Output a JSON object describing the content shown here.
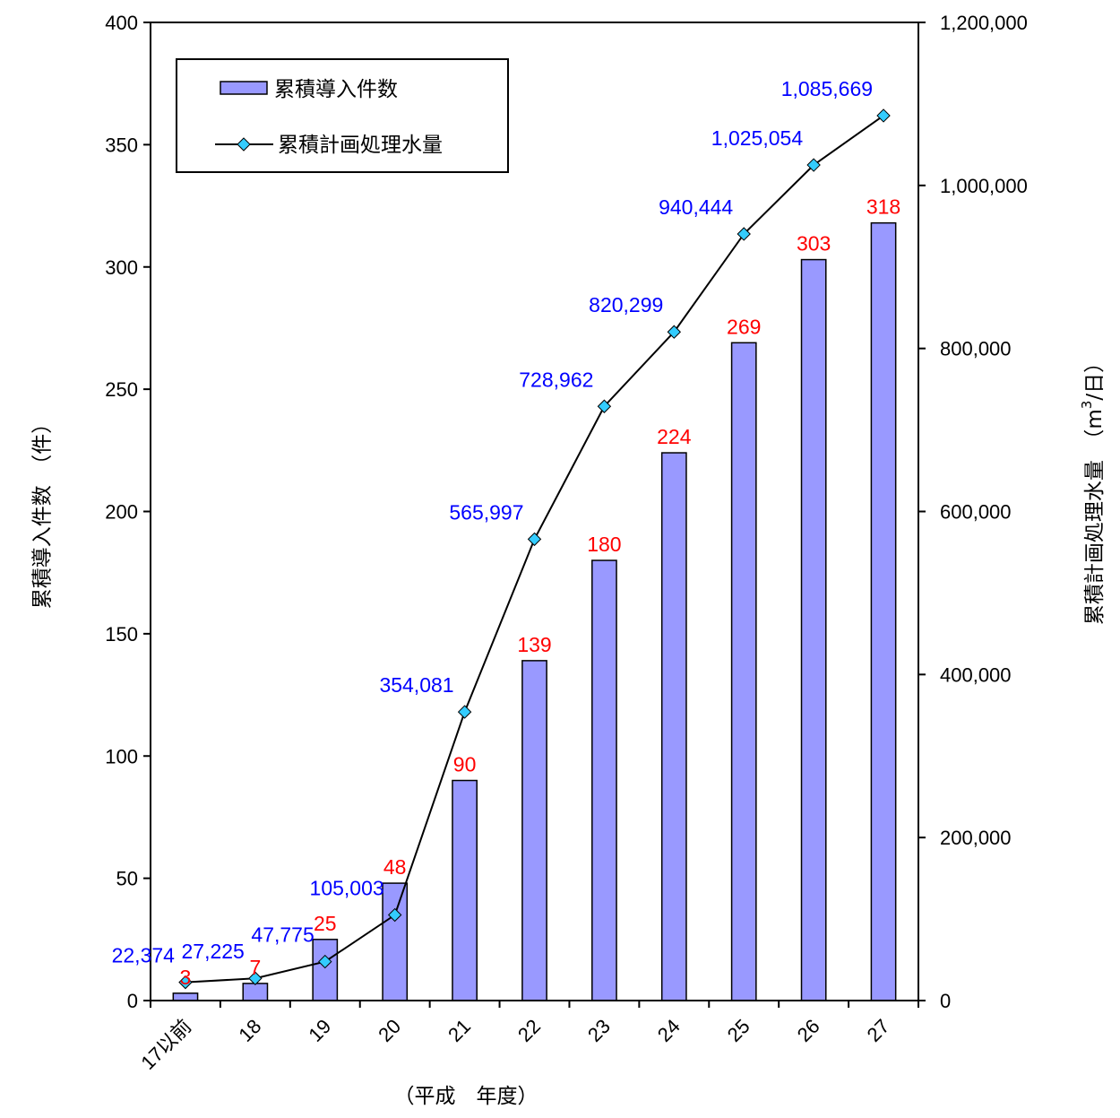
{
  "chart_data": {
    "type": "bar",
    "categories": [
      "17以前",
      "18",
      "19",
      "20",
      "21",
      "22",
      "23",
      "24",
      "25",
      "26",
      "27"
    ],
    "series": [
      {
        "name": "累積導入件数",
        "type": "bar",
        "axis": "left",
        "values": [
          3,
          7,
          25,
          48,
          90,
          139,
          180,
          224,
          269,
          303,
          318
        ],
        "labels": [
          "3",
          "7",
          "25",
          "48",
          "90",
          "139",
          "180",
          "224",
          "269",
          "303",
          "318"
        ],
        "color": "#9999ff",
        "label_color": "#ff0000"
      },
      {
        "name": "累積計画処理水量",
        "type": "line",
        "axis": "right",
        "values": [
          22374,
          27225,
          47775,
          105003,
          354081,
          565997,
          728962,
          820299,
          940444,
          1025054,
          1085669
        ],
        "labels": [
          "22,374",
          "27,225",
          "47,775",
          "105,003",
          "354,081",
          "565,997",
          "728,962",
          "820,299",
          "940,444",
          "1,025,054",
          "1,085,669"
        ],
        "color": "#000000",
        "marker_color": "#33ccff",
        "label_color": "#0000ff"
      }
    ],
    "y_left": {
      "label": "累積導入件数　（件）",
      "ylim": [
        0,
        400
      ],
      "ticks": [
        0,
        50,
        100,
        150,
        200,
        250,
        300,
        350,
        400
      ],
      "tick_labels": [
        "0",
        "50",
        "100",
        "150",
        "200",
        "250",
        "300",
        "350",
        "400"
      ]
    },
    "y_right": {
      "label": "累積計画処理水量　（m³/日）",
      "ylim": [
        0,
        1200000
      ],
      "ticks": [
        0,
        200000,
        400000,
        600000,
        800000,
        1000000,
        1200000
      ],
      "tick_labels": [
        "0",
        "200,000",
        "400,000",
        "600,000",
        "800,000",
        "1,000,000",
        "1,200,000"
      ]
    },
    "xlabel": "（平成　年度）",
    "legend": "top-left",
    "grid": false
  }
}
